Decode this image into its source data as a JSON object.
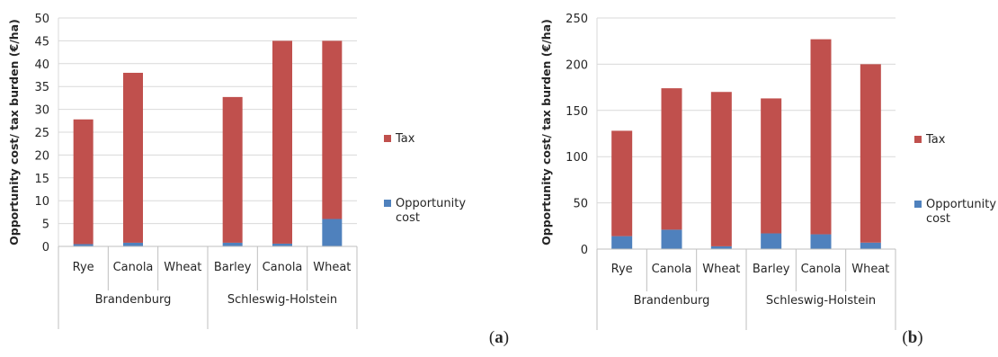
{
  "chart_data": [
    {
      "panel_label": "a",
      "type": "bar",
      "stacked": true,
      "ylabel": "Opportunity cost/ tax burden (€/ha)",
      "ylim": [
        0,
        50
      ],
      "yticks": [
        0,
        5,
        10,
        15,
        20,
        25,
        30,
        35,
        40,
        45,
        50
      ],
      "grid": true,
      "legend_position": "right",
      "groups": [
        {
          "name": "Brandenburg",
          "categories": [
            "Rye",
            "Canola",
            "Wheat"
          ]
        },
        {
          "name": "Schleswig-Holstein",
          "categories": [
            "Barley",
            "Canola",
            "Wheat"
          ]
        }
      ],
      "categories": [
        "Rye",
        "Canola",
        "Wheat",
        "Barley",
        "Canola",
        "Wheat"
      ],
      "series": [
        {
          "name": "Opportunity cost",
          "color": "#4f81bd",
          "values": [
            0.5,
            0.8,
            0,
            0.8,
            0.6,
            6
          ]
        },
        {
          "name": "Tax",
          "color": "#c0504d",
          "values": [
            27.3,
            37.2,
            0,
            31.9,
            44.4,
            39
          ]
        }
      ],
      "legend": [
        {
          "series": 1,
          "lines": [
            "Tax"
          ]
        },
        {
          "series": 0,
          "lines": [
            "Opportunity",
            "cost"
          ]
        }
      ]
    },
    {
      "panel_label": "b",
      "type": "bar",
      "stacked": true,
      "ylabel": "Opportunity cost/ tax burden (€/ha)",
      "ylim": [
        0,
        250
      ],
      "yticks": [
        0,
        50,
        100,
        150,
        200,
        250
      ],
      "grid": true,
      "legend_position": "right",
      "groups": [
        {
          "name": "Brandenburg",
          "categories": [
            "Rye",
            "Canola",
            "Wheat"
          ]
        },
        {
          "name": "Schleswig-Holstein",
          "categories": [
            "Barley",
            "Canola",
            "Wheat"
          ]
        }
      ],
      "categories": [
        "Rye",
        "Canola",
        "Wheat",
        "Barley",
        "Canola",
        "Wheat"
      ],
      "series": [
        {
          "name": "Opportunity cost",
          "color": "#4f81bd",
          "values": [
            14,
            21,
            3,
            17,
            16,
            7
          ]
        },
        {
          "name": "Tax",
          "color": "#c0504d",
          "values": [
            114,
            153,
            167,
            146,
            211,
            193
          ]
        }
      ],
      "legend": [
        {
          "series": 1,
          "lines": [
            "Tax"
          ]
        },
        {
          "series": 0,
          "lines": [
            "Opportunity",
            "cost"
          ]
        }
      ]
    }
  ]
}
